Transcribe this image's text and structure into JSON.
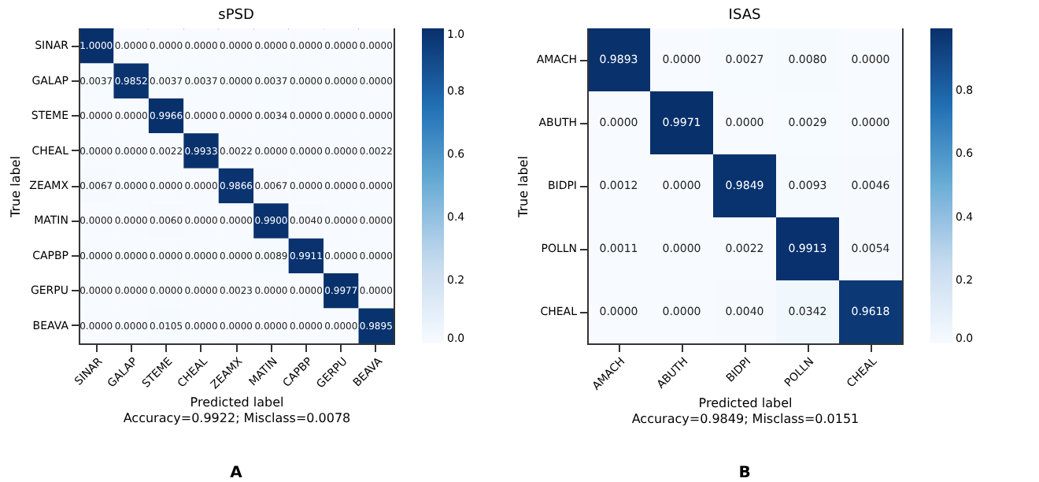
{
  "chart_data": [
    {
      "type": "heatmap",
      "title": "sPSD",
      "xlabel": "Predicted label",
      "ylabel": "True label",
      "categories": [
        "SINAR",
        "GALAP",
        "STEME",
        "CHEAL",
        "ZEAMX",
        "MATIN",
        "CAPBP",
        "GERPU",
        "BEAVA"
      ],
      "y_categories": [
        "SINAR",
        "GALAP",
        "STEME",
        "CHEAL",
        "ZEAMX",
        "MATIN",
        "CAPBP",
        "GERPU",
        "BEAVA"
      ],
      "cells": [
        [
          1.0,
          0,
          0,
          0,
          0,
          0,
          0,
          0,
          0
        ],
        [
          0.0037,
          0.9852,
          0.0037,
          0.0037,
          0,
          0.0037,
          0,
          0,
          0
        ],
        [
          0,
          0,
          0.9966,
          0,
          0,
          0.0034,
          0,
          0,
          0
        ],
        [
          0,
          0,
          0.0022,
          0.9933,
          0.0022,
          0,
          0,
          0,
          0.0022
        ],
        [
          0.0067,
          0,
          0,
          0,
          0.9866,
          0.0067,
          0,
          0,
          0
        ],
        [
          0,
          0,
          0.006,
          0,
          0,
          0.99,
          0.004,
          0,
          0
        ],
        [
          0,
          0,
          0,
          0,
          0,
          0.0089,
          0.9911,
          0,
          0
        ],
        [
          0,
          0,
          0,
          0,
          0.0023,
          0,
          0,
          0.9977,
          0
        ],
        [
          0,
          0,
          0.0105,
          0,
          0,
          0,
          0,
          0,
          0.9895
        ]
      ],
      "cell_labels": [
        [
          "1.0000",
          "0.0000",
          "0.0000",
          "0.0000",
          "0.0000",
          "0.0000",
          "0.0000",
          "0.0000",
          "0.0000"
        ],
        [
          "0.0037",
          "0.9852",
          "0.0037",
          "0.0037",
          "0.0000",
          "0.0037",
          "0.0000",
          "0.0000",
          "0.0000"
        ],
        [
          "0.0000",
          "0.0000",
          "0.9966",
          "0.0000",
          "0.0000",
          "0.0034",
          "0.0000",
          "0.0000",
          "0.0000"
        ],
        [
          "0.0000",
          "0.0000",
          "0.0022",
          "0.9933",
          "0.0022",
          "0.0000",
          "0.0000",
          "0.0000",
          "0.0022"
        ],
        [
          "0.0067",
          "0.0000",
          "0.0000",
          "0.0000",
          "0.9866",
          "0.0067",
          "0.0000",
          "0.0000",
          "0.0000"
        ],
        [
          "0.0000",
          "0.0000",
          "0.0060",
          "0.0000",
          "0.0000",
          "0.9900",
          "0.0040",
          "0.0000",
          "0.0000"
        ],
        [
          "0.0000",
          "0.0000",
          "0.0000",
          "0.0000",
          "0.0000",
          "0.0089",
          "0.9911",
          "0.0000",
          "0.0000"
        ],
        [
          "0.0000",
          "0.0000",
          "0.0000",
          "0.0000",
          "0.0023",
          "0.0000",
          "0.0000",
          "0.9977",
          "0.0000"
        ],
        [
          "0.0000",
          "0.0000",
          "0.0105",
          "0.0000",
          "0.0000",
          "0.0000",
          "0.0000",
          "0.0000",
          "0.9895"
        ]
      ],
      "clim": [
        0,
        1.0
      ],
      "cticks": [
        {
          "value": 0,
          "label": "0.0"
        },
        {
          "value": 0.2,
          "label": "0.2"
        },
        {
          "value": 0.4,
          "label": "0.4"
        },
        {
          "value": 0.6,
          "label": "0.6"
        },
        {
          "value": 0.8,
          "label": "0.8"
        },
        {
          "value": 1.0,
          "label": "1.0"
        }
      ],
      "annotations": [
        "Accuracy=0.9922; Misclass=0.0078",
        "A"
      ]
    },
    {
      "type": "heatmap",
      "title": "ISAS",
      "xlabel": "Predicted label",
      "ylabel": "True label",
      "categories": [
        "AMACH",
        "ABUTH",
        "BIDPI",
        "POLLN",
        "CHEAL"
      ],
      "y_categories": [
        "AMACH",
        "ABUTH",
        "BIDPI",
        "POLLN",
        "CHEAL"
      ],
      "cells": [
        [
          0.9893,
          0,
          0.0027,
          0.008,
          0
        ],
        [
          0,
          0.9971,
          0,
          0.0029,
          0
        ],
        [
          0.0012,
          0,
          0.9849,
          0.0093,
          0.0046
        ],
        [
          0.0011,
          0,
          0.0022,
          0.9913,
          0.0054
        ],
        [
          0,
          0,
          0.004,
          0.0342,
          0.9618
        ]
      ],
      "cell_labels": [
        [
          "0.9893",
          "0.0000",
          "0.0027",
          "0.0080",
          "0.0000"
        ],
        [
          "0.0000",
          "0.9971",
          "0.0000",
          "0.0029",
          "0.0000"
        ],
        [
          "0.0012",
          "0.0000",
          "0.9849",
          "0.0093",
          "0.0046"
        ],
        [
          "0.0011",
          "0.0000",
          "0.0022",
          "0.9913",
          "0.0054"
        ],
        [
          "0.0000",
          "0.0000",
          "0.0040",
          "0.0342",
          "0.9618"
        ]
      ],
      "clim": [
        0,
        0.9971
      ],
      "cticks": [
        {
          "value": 0,
          "label": "0.0"
        },
        {
          "value": 0.2,
          "label": "0.2"
        },
        {
          "value": 0.4,
          "label": "0.4"
        },
        {
          "value": 0.6,
          "label": "0.6"
        },
        {
          "value": 0.8,
          "label": "0.8"
        }
      ],
      "annotations": [
        "Accuracy=0.9849; Misclass=0.0151",
        "B"
      ]
    }
  ]
}
